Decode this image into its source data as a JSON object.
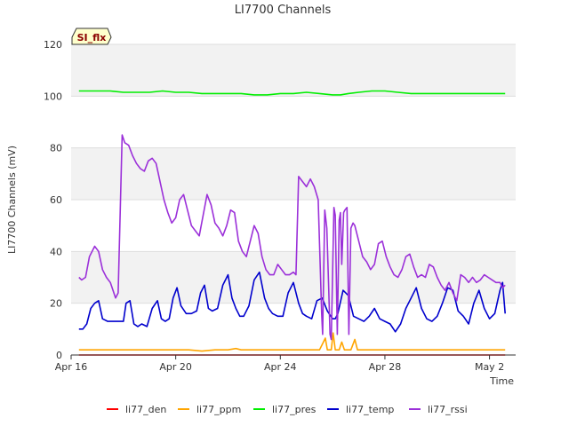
{
  "chart_data": {
    "type": "line",
    "title": "LI7700 Channels",
    "xlabel": "Time",
    "ylabel": "LI7700 Channels (mV)",
    "badge": "SI_flx",
    "xlim": [
      0,
      17
    ],
    "ylim": [
      0,
      120
    ],
    "x_ticks": [
      {
        "value": 0,
        "label": "Apr 16"
      },
      {
        "value": 4,
        "label": "Apr 20"
      },
      {
        "value": 8,
        "label": "Apr 24"
      },
      {
        "value": 12,
        "label": "Apr 28"
      },
      {
        "value": 16,
        "label": "May 2"
      }
    ],
    "y_ticks": [
      0,
      20,
      40,
      60,
      80,
      100,
      120
    ],
    "band_color": "#f2f2f2",
    "series": [
      {
        "name": "li77_den",
        "color": "#ff0000",
        "x": [
          0.3,
          9.6,
          9.75,
          9.9,
          10.1,
          16.6
        ],
        "y": [
          0.0,
          0.0,
          0.0,
          0.0,
          0.0,
          0.0
        ]
      },
      {
        "name": "li77_ppm",
        "color": "#ffa500",
        "x": [
          0.3,
          1.0,
          1.5,
          2.0,
          2.5,
          3.0,
          3.5,
          4.0,
          4.5,
          5.0,
          5.5,
          6.0,
          6.3,
          6.5,
          7.0,
          7.5,
          8.0,
          8.5,
          9.0,
          9.5,
          9.65,
          9.72,
          9.8,
          9.95,
          10.02,
          10.1,
          10.25,
          10.35,
          10.45,
          10.52,
          10.6,
          10.7,
          10.85,
          10.95,
          11.1,
          11.5,
          12.0,
          13.0,
          14.0,
          15.0,
          16.0,
          16.6
        ],
        "y": [
          2.0,
          2.0,
          2.0,
          2.0,
          2.0,
          2.0,
          2.0,
          2.0,
          2.0,
          1.5,
          2.0,
          2.0,
          2.5,
          2.0,
          2.0,
          2.0,
          2.0,
          2.0,
          2.0,
          2.0,
          5.0,
          6.5,
          2.0,
          2.0,
          8.5,
          2.0,
          2.0,
          5.0,
          2.0,
          2.0,
          2.0,
          2.0,
          6.0,
          2.0,
          2.0,
          2.0,
          2.0,
          2.0,
          2.0,
          2.0,
          2.0,
          2.0
        ]
      },
      {
        "name": "li77_pres",
        "color": "#00ee00",
        "x": [
          0.3,
          1.0,
          1.5,
          2.0,
          2.5,
          3.0,
          3.5,
          4.0,
          4.5,
          5.0,
          5.5,
          6.0,
          6.5,
          7.0,
          7.5,
          8.0,
          8.5,
          9.0,
          9.5,
          10.0,
          10.3,
          10.6,
          11.0,
          11.5,
          12.0,
          12.5,
          13.0,
          13.5,
          14.0,
          14.5,
          15.0,
          15.5,
          16.0,
          16.6
        ],
        "y": [
          102,
          102,
          102,
          101.5,
          101.5,
          101.5,
          102,
          101.5,
          101.5,
          101,
          101,
          101,
          101,
          100.5,
          100.5,
          101,
          101,
          101.5,
          101,
          100.5,
          100.5,
          101,
          101.5,
          102,
          102,
          101.5,
          101,
          101,
          101,
          101,
          101,
          101,
          101,
          101
        ]
      },
      {
        "name": "li77_temp",
        "color": "#0000cd",
        "x": [
          0.3,
          0.45,
          0.6,
          0.75,
          0.9,
          1.05,
          1.2,
          1.4,
          1.6,
          1.8,
          2.0,
          2.1,
          2.25,
          2.4,
          2.55,
          2.7,
          2.9,
          3.1,
          3.3,
          3.45,
          3.6,
          3.75,
          3.9,
          4.05,
          4.2,
          4.4,
          4.6,
          4.8,
          4.95,
          5.1,
          5.25,
          5.4,
          5.6,
          5.8,
          6.0,
          6.15,
          6.3,
          6.45,
          6.6,
          6.8,
          7.0,
          7.2,
          7.4,
          7.55,
          7.7,
          7.9,
          8.1,
          8.3,
          8.5,
          8.7,
          8.85,
          9.0,
          9.2,
          9.4,
          9.6,
          9.8,
          10.0,
          10.1,
          10.2,
          10.4,
          10.6,
          10.8,
          11.0,
          11.2,
          11.4,
          11.6,
          11.8,
          12.0,
          12.2,
          12.4,
          12.6,
          12.8,
          13.0,
          13.2,
          13.4,
          13.6,
          13.8,
          14.0,
          14.2,
          14.4,
          14.6,
          14.8,
          15.0,
          15.2,
          15.4,
          15.6,
          15.8,
          16.0,
          16.2,
          16.4,
          16.5,
          16.6
        ],
        "y": [
          10,
          10,
          12,
          18,
          20,
          21,
          14,
          13,
          13,
          13,
          13,
          20,
          21,
          12,
          11,
          12,
          11,
          18,
          21,
          14,
          13,
          14,
          22,
          26,
          19,
          16,
          16,
          17,
          24,
          27,
          18,
          17,
          18,
          27,
          31,
          22,
          18,
          15,
          15,
          19,
          29,
          32,
          22,
          18,
          16,
          15,
          15,
          24,
          28,
          20,
          16,
          15,
          14,
          21,
          22,
          17,
          14,
          14,
          16,
          25,
          23,
          15,
          14,
          13,
          15,
          18,
          14,
          13,
          12,
          9,
          12,
          18,
          22,
          26,
          18,
          14,
          13,
          15,
          20,
          26,
          25,
          17,
          15,
          12,
          20,
          25,
          18,
          14,
          16,
          25,
          28,
          16
        ]
      },
      {
        "name": "li77_rssi",
        "color": "#9b30d9",
        "x": [
          0.3,
          0.4,
          0.55,
          0.7,
          0.9,
          1.05,
          1.2,
          1.35,
          1.5,
          1.6,
          1.7,
          1.8,
          1.95,
          2.05,
          2.2,
          2.35,
          2.5,
          2.65,
          2.8,
          2.95,
          3.1,
          3.25,
          3.4,
          3.55,
          3.7,
          3.85,
          4.0,
          4.15,
          4.3,
          4.45,
          4.6,
          4.75,
          4.9,
          5.05,
          5.2,
          5.35,
          5.5,
          5.65,
          5.8,
          5.95,
          6.1,
          6.25,
          6.4,
          6.55,
          6.7,
          6.85,
          7.0,
          7.15,
          7.3,
          7.45,
          7.6,
          7.75,
          7.9,
          8.05,
          8.2,
          8.35,
          8.5,
          8.6,
          8.7,
          8.85,
          9.0,
          9.15,
          9.3,
          9.45,
          9.58,
          9.62,
          9.7,
          9.78,
          9.85,
          9.9,
          9.95,
          10.05,
          10.1,
          10.18,
          10.25,
          10.3,
          10.35,
          10.42,
          10.47,
          10.55,
          10.62,
          10.7,
          10.78,
          10.85,
          11.0,
          11.15,
          11.3,
          11.45,
          11.6,
          11.75,
          11.9,
          12.05,
          12.2,
          12.35,
          12.5,
          12.65,
          12.8,
          12.95,
          13.1,
          13.25,
          13.4,
          13.55,
          13.7,
          13.85,
          14.0,
          14.15,
          14.3,
          14.45,
          14.6,
          14.75,
          14.9,
          15.05,
          15.2,
          15.35,
          15.5,
          15.65,
          15.8,
          15.95,
          16.1,
          16.25,
          16.4,
          16.5,
          16.6
        ],
        "y": [
          30,
          29,
          30,
          38,
          42,
          40,
          33,
          30,
          28,
          25,
          22,
          24,
          85,
          82,
          81,
          77,
          74,
          72,
          71,
          75,
          76,
          74,
          67,
          60,
          55,
          51,
          53,
          60,
          62,
          56,
          50,
          48,
          46,
          54,
          62,
          58,
          51,
          49,
          46,
          50,
          56,
          55,
          44,
          40,
          38,
          44,
          50,
          47,
          38,
          33,
          31,
          31,
          35,
          33,
          31,
          31,
          32,
          31,
          69,
          67,
          65,
          68,
          65,
          60,
          16,
          8,
          56,
          49,
          26,
          8,
          6,
          57,
          54,
          8,
          52,
          55,
          35,
          55,
          56,
          57,
          8,
          49,
          51,
          50,
          44,
          38,
          36,
          33,
          35,
          43,
          44,
          38,
          34,
          31,
          30,
          33,
          38,
          39,
          34,
          30,
          31,
          30,
          35,
          34,
          30,
          27,
          25,
          28,
          24,
          21,
          31,
          30,
          28,
          30,
          28,
          29,
          31,
          30,
          29,
          28,
          28,
          26,
          27
        ]
      }
    ]
  }
}
